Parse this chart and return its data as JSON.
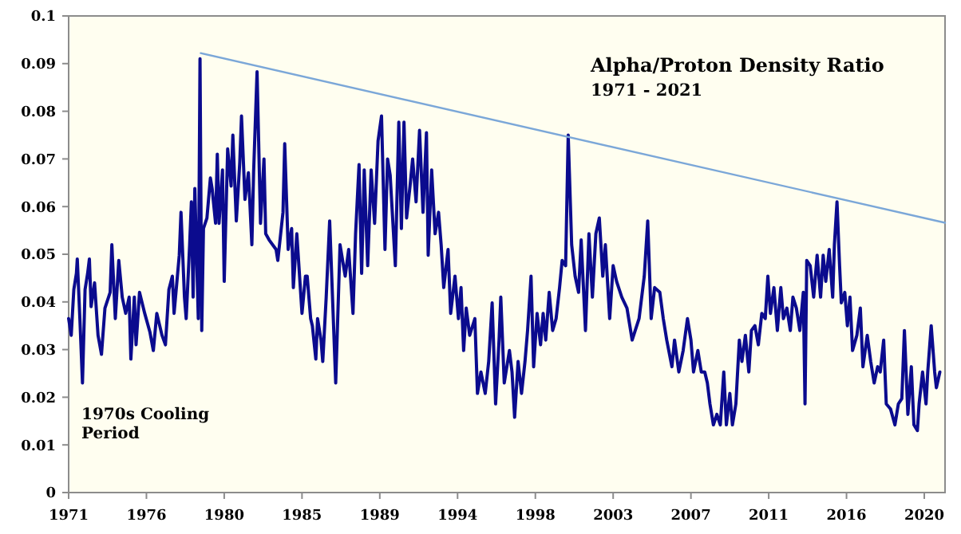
{
  "chart_data": {
    "type": "line",
    "title": "Alpha/Proton Density Ratio",
    "subtitle": "1971 - 2021",
    "annotations": [
      "1970s Cooling Period"
    ],
    "xlim": [
      1971,
      2021.7
    ],
    "xticks": [
      1971,
      {
        "value": 1975.5,
        "label": "1976"
      },
      1980,
      {
        "value": 1984.5,
        "label": "1985"
      },
      1989,
      {
        "value": 1993.5,
        "label": "1994"
      },
      1998,
      {
        "value": 2002.5,
        "label": "2003"
      },
      2007,
      {
        "value": 2011.5,
        "label": "2011"
      },
      2016,
      {
        "value": 2020.5,
        "label": "2020"
      }
    ],
    "ylim": [
      0,
      0.1
    ],
    "yticks": [
      0,
      0.01,
      0.02,
      0.03,
      0.04,
      0.05,
      0.06,
      0.07,
      0.08,
      0.09,
      0.1
    ],
    "series": [
      {
        "color": "#0b0b8e",
        "x": [
          1971.0,
          1971.15,
          1971.3,
          1971.45,
          1971.5,
          1971.65,
          1971.8,
          1971.95,
          1972.1,
          1972.2,
          1972.3,
          1972.5,
          1972.7,
          1972.9,
          1973.1,
          1973.4,
          1973.5,
          1973.7,
          1973.9,
          1974.1,
          1974.3,
          1974.5,
          1974.6,
          1974.8,
          1974.9,
          1975.1,
          1975.4,
          1975.7,
          1975.9,
          1976.1,
          1976.4,
          1976.6,
          1976.8,
          1977.0,
          1977.1,
          1977.4,
          1977.5,
          1977.7,
          1977.8,
          1978.0,
          1978.1,
          1978.2,
          1978.3,
          1978.5,
          1978.6,
          1978.7,
          1978.8,
          1979.0,
          1979.2,
          1979.3,
          1979.5,
          1979.6,
          1979.7,
          1979.9,
          1980.0,
          1980.2,
          1980.4,
          1980.5,
          1980.7,
          1980.9,
          1981.0,
          1981.2,
          1981.4,
          1981.6,
          1981.7,
          1981.9,
          1982.1,
          1982.3,
          1982.4,
          1982.6,
          1983.0,
          1983.1,
          1983.4,
          1983.5,
          1983.7,
          1983.9,
          1984.0,
          1984.2,
          1984.5,
          1984.7,
          1984.8,
          1985.0,
          1985.1,
          1985.3,
          1985.4,
          1985.6,
          1985.7,
          1985.9,
          1986.1,
          1986.45,
          1986.7,
          1987.0,
          1987.2,
          1987.45,
          1987.6,
          1987.8,
          1987.95,
          1988.1,
          1988.3,
          1988.5,
          1988.7,
          1988.9,
          1989.1,
          1989.3,
          1989.45,
          1989.6,
          1989.9,
          1990.1,
          1990.25,
          1990.4,
          1990.55,
          1990.75,
          1990.9,
          1991.1,
          1991.3,
          1991.5,
          1991.7,
          1991.8,
          1992.0,
          1992.2,
          1992.4,
          1992.55,
          1992.7,
          1992.95,
          1993.1,
          1993.35,
          1993.55,
          1993.7,
          1993.85,
          1994.0,
          1994.2,
          1994.5,
          1994.65,
          1994.85,
          1995.1,
          1995.3,
          1995.5,
          1995.7,
          1995.9,
          1996.0,
          1996.2,
          1996.5,
          1996.65,
          1996.8,
          1997.0,
          1997.2,
          1997.4,
          1997.55,
          1997.75,
          1997.9,
          1998.1,
          1998.3,
          1998.45,
          1998.6,
          1998.8,
          1999.0,
          1999.2,
          1999.4,
          1999.55,
          1999.75,
          1999.9,
          2000.1,
          2000.3,
          2000.5,
          2000.65,
          2000.9,
          2001.1,
          2001.3,
          2001.5,
          2001.7,
          2001.9,
          2002.05,
          2002.3,
          2002.5,
          2002.7,
          2003.0,
          2003.3,
          2003.6,
          2004.0,
          2004.3,
          2004.5,
          2004.7,
          2004.9,
          2005.2,
          2005.4,
          2005.6,
          2005.9,
          2006.05,
          2006.3,
          2006.55,
          2006.8,
          2007.0,
          2007.15,
          2007.4,
          2007.6,
          2007.8,
          2007.95,
          2008.1,
          2008.3,
          2008.5,
          2008.7,
          2008.9,
          2009.05,
          2009.25,
          2009.4,
          2009.6,
          2009.8,
          2009.95,
          2010.15,
          2010.35,
          2010.5,
          2010.7,
          2010.9,
          2011.1,
          2011.3,
          2011.45,
          2011.6,
          2011.8,
          2012.0,
          2012.2,
          2012.35,
          2012.55,
          2012.75,
          2012.9,
          2013.1,
          2013.3,
          2013.5,
          2013.6,
          2013.7,
          2013.9,
          2014.1,
          2014.3,
          2014.5,
          2014.65,
          2014.8,
          2015.0,
          2015.2,
          2015.3,
          2015.45,
          2015.6,
          2015.7,
          2015.9,
          2016.05,
          2016.2,
          2016.35,
          2016.6,
          2016.8,
          2016.95,
          2017.2,
          2017.4,
          2017.6,
          2017.8,
          2017.95,
          2018.15,
          2018.3,
          2018.55,
          2018.8,
          2019.0,
          2019.2,
          2019.35,
          2019.55,
          2019.75,
          2019.9,
          2020.1,
          2020.2,
          2020.4,
          2020.6,
          2020.7,
          2020.9,
          2021.1,
          2021.2,
          2021.4
        ],
        "values": [
          0.0365,
          0.033,
          0.0426,
          0.046,
          0.049,
          0.0365,
          0.023,
          0.0426,
          0.046,
          0.049,
          0.039,
          0.044,
          0.033,
          0.029,
          0.0387,
          0.042,
          0.052,
          0.0365,
          0.0487,
          0.041,
          0.0376,
          0.041,
          0.028,
          0.041,
          0.031,
          0.042,
          0.0376,
          0.0337,
          0.0298,
          0.0376,
          0.033,
          0.031,
          0.0426,
          0.0454,
          0.0376,
          0.0498,
          0.0588,
          0.041,
          0.0365,
          0.052,
          0.061,
          0.041,
          0.0638,
          0.0365,
          0.091,
          0.034,
          0.0554,
          0.0576,
          0.066,
          0.0638,
          0.0565,
          0.071,
          0.0565,
          0.0677,
          0.0443,
          0.0721,
          0.0643,
          0.075,
          0.057,
          0.0693,
          0.079,
          0.0615,
          0.0671,
          0.052,
          0.0671,
          0.0883,
          0.0565,
          0.07,
          0.0543,
          0.053,
          0.051,
          0.0487,
          0.0588,
          0.0732,
          0.051,
          0.0554,
          0.043,
          0.0543,
          0.0376,
          0.0454,
          0.0454,
          0.0365,
          0.035,
          0.028,
          0.0365,
          0.032,
          0.0275,
          0.041,
          0.057,
          0.023,
          0.052,
          0.0454,
          0.051,
          0.0376,
          0.0543,
          0.0688,
          0.046,
          0.0677,
          0.0476,
          0.0677,
          0.0565,
          0.0738,
          0.079,
          0.051,
          0.07,
          0.0666,
          0.0476,
          0.0777,
          0.0554,
          0.0777,
          0.0576,
          0.0643,
          0.07,
          0.061,
          0.076,
          0.0588,
          0.0755,
          0.0498,
          0.0677,
          0.0543,
          0.0588,
          0.052,
          0.043,
          0.051,
          0.0376,
          0.0454,
          0.0365,
          0.043,
          0.0298,
          0.0387,
          0.033,
          0.0365,
          0.0208,
          0.0253,
          0.0208,
          0.0275,
          0.0398,
          0.0186,
          0.032,
          0.041,
          0.023,
          0.0298,
          0.0253,
          0.0158,
          0.0275,
          0.0208,
          0.0275,
          0.034,
          0.0454,
          0.0264,
          0.0376,
          0.031,
          0.0376,
          0.032,
          0.042,
          0.034,
          0.0365,
          0.043,
          0.0487,
          0.0476,
          0.075,
          0.052,
          0.0454,
          0.042,
          0.053,
          0.034,
          0.0543,
          0.041,
          0.0543,
          0.0576,
          0.0454,
          0.052,
          0.0365,
          0.0476,
          0.0443,
          0.041,
          0.0387,
          0.032,
          0.0365,
          0.0454,
          0.057,
          0.0365,
          0.043,
          0.042,
          0.0365,
          0.032,
          0.0264,
          0.032,
          0.0253,
          0.0298,
          0.0365,
          0.032,
          0.0253,
          0.0298,
          0.0253,
          0.0253,
          0.023,
          0.0186,
          0.0142,
          0.0164,
          0.0142,
          0.0253,
          0.0142,
          0.0208,
          0.0142,
          0.0186,
          0.032,
          0.0275,
          0.033,
          0.0253,
          0.034,
          0.035,
          0.031,
          0.0376,
          0.0365,
          0.0454,
          0.0376,
          0.043,
          0.034,
          0.043,
          0.0365,
          0.0387,
          0.034,
          0.041,
          0.0387,
          0.034,
          0.042,
          0.0186,
          0.0487,
          0.0476,
          0.041,
          0.0498,
          0.041,
          0.0498,
          0.0443,
          0.051,
          0.041,
          0.052,
          0.061,
          0.0476,
          0.0398,
          0.042,
          0.035,
          0.041,
          0.0298,
          0.033,
          0.0387,
          0.0264,
          0.033,
          0.0275,
          0.023,
          0.0264,
          0.0253,
          0.032,
          0.0186,
          0.0175,
          0.0142,
          0.0186,
          0.0197,
          0.034,
          0.0164,
          0.0264,
          0.0142,
          0.013,
          0.0186,
          0.0253,
          0.0186,
          0.0253,
          0.035,
          0.0253,
          0.022,
          0.0253
        ]
      },
      {
        "color": "#7ba7d8",
        "x": [
          1978.64,
          2021.7
        ],
        "values": [
          0.0922,
          0.0566
        ]
      }
    ]
  }
}
